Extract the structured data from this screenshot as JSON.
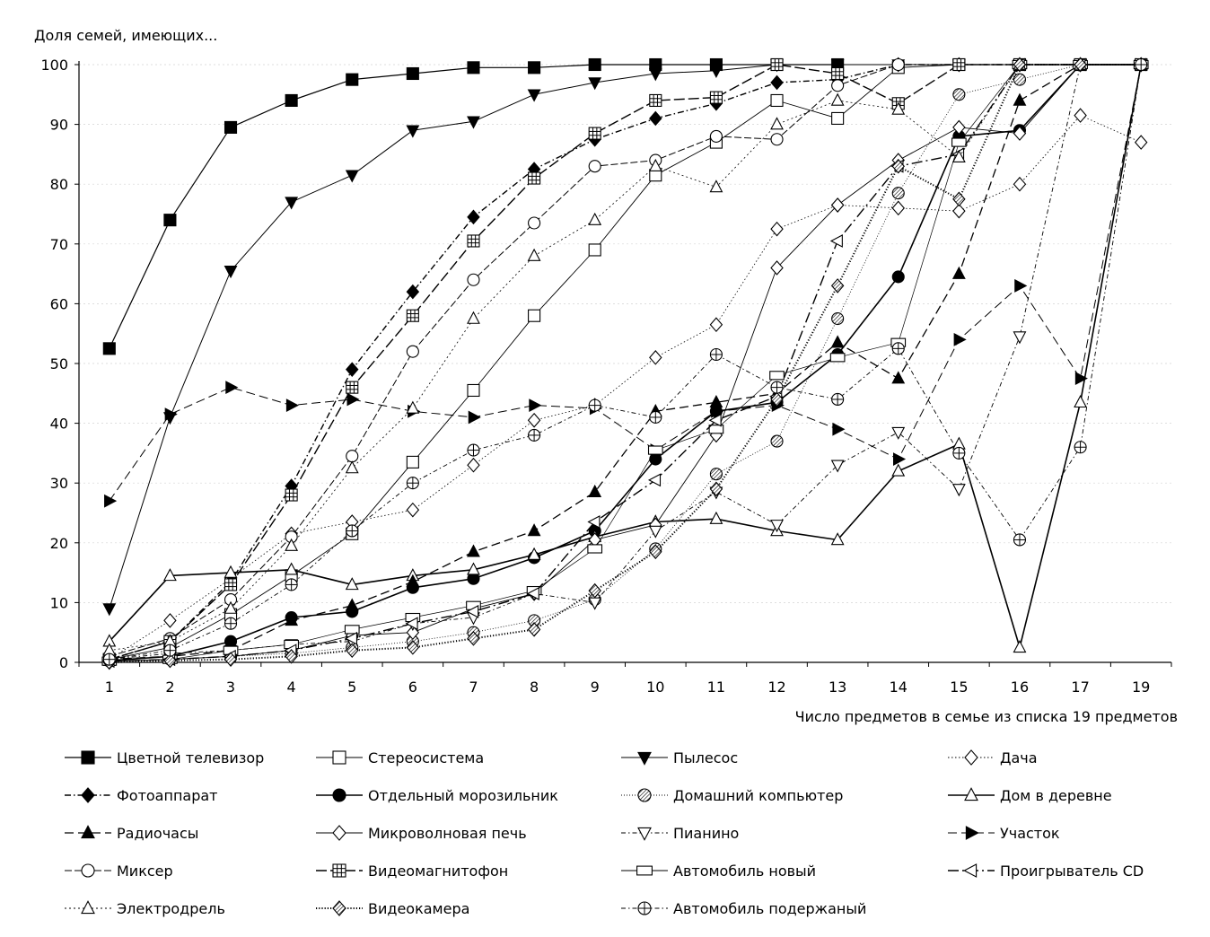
{
  "chart_data": {
    "type": "line",
    "title": "",
    "ylabel": "Доля семей, имеющих...",
    "xlabel": "Число предметов в семье из списка 19 предметов",
    "categories": [
      "1",
      "2",
      "3",
      "4",
      "5",
      "6",
      "7",
      "8",
      "9",
      "10",
      "11",
      "12",
      "13",
      "14",
      "15",
      "16",
      "17",
      "19"
    ],
    "ylim": [
      0,
      100
    ],
    "yticks": [
      0,
      10,
      20,
      30,
      40,
      50,
      60,
      70,
      80,
      90,
      100
    ],
    "grid": true,
    "legend_position": "bottom",
    "series": [
      {
        "name": "Цветной телевизор",
        "color": "#000000",
        "dash": "",
        "marker": "square",
        "fill": "black",
        "width": 1.2,
        "values": [
          52.5,
          74,
          89.5,
          94,
          97.5,
          98.5,
          99.5,
          99.5,
          100,
          100,
          100,
          100,
          100,
          null,
          null,
          null,
          null,
          null
        ]
      },
      {
        "name": "Стереосистема",
        "color": "#000000",
        "dash": "",
        "marker": "square",
        "fill": "white",
        "width": 0.9,
        "values": [
          0.5,
          2.5,
          8,
          14.5,
          21.5,
          33.5,
          45.5,
          58,
          69,
          81.5,
          87,
          94,
          91,
          99.5,
          100,
          100,
          100,
          100
        ]
      },
      {
        "name": "Пылесос",
        "color": "#000000",
        "dash": "",
        "marker": "triangle-down",
        "fill": "black",
        "width": 1.0,
        "values": [
          9,
          41,
          65.5,
          77,
          81.5,
          89,
          90.5,
          95,
          97,
          98.5,
          99,
          100,
          100,
          100,
          100,
          100,
          100,
          100
        ]
      },
      {
        "name": "Дача",
        "color": "#000000",
        "dash": "1.5 2.5",
        "marker": "diamond",
        "fill": "white",
        "width": 0.8,
        "values": [
          0.5,
          7,
          14,
          21.5,
          23.5,
          25.5,
          33,
          40.5,
          43,
          51,
          56.5,
          72.5,
          76.5,
          76,
          75.5,
          80,
          91.5,
          87
        ]
      },
      {
        "name": "Фотоаппарат",
        "color": "#000000",
        "dash": "7 3 1.5 3",
        "marker": "diamond",
        "fill": "black",
        "width": 1.4,
        "values": [
          0.5,
          3.5,
          13.5,
          29.5,
          49,
          62,
          74.5,
          82.5,
          87.5,
          91,
          93.5,
          97,
          97.5,
          100,
          100,
          100,
          100,
          100
        ]
      },
      {
        "name": "Отдельный морозильник",
        "color": "#000000",
        "dash": "",
        "marker": "circle",
        "fill": "black",
        "width": 1.6,
        "values": [
          0.3,
          1,
          3.5,
          7.5,
          8.5,
          12.5,
          14,
          17.5,
          22,
          34,
          42,
          43.5,
          51.5,
          64.5,
          88,
          89,
          100,
          100
        ]
      },
      {
        "name": "Домашний компьютер",
        "color": "#000000",
        "dash": "1 2",
        "marker": "circle-hatch",
        "fill": "white",
        "width": 0.8,
        "values": [
          0.2,
          0.5,
          1,
          1.5,
          2.5,
          3.5,
          5,
          7,
          10.5,
          19,
          31.5,
          37,
          57.5,
          78.5,
          95,
          97.5,
          100,
          100
        ]
      },
      {
        "name": "Дом в деревне",
        "color": "#000000",
        "dash": "",
        "marker": "triangle",
        "fill": "white",
        "width": 1.6,
        "values": [
          3.5,
          14.5,
          15,
          15.5,
          13,
          14.5,
          15.5,
          18,
          21,
          23.5,
          24,
          22,
          20.5,
          32,
          36.5,
          2.5,
          43.5,
          100
        ]
      },
      {
        "name": "Радиочасы",
        "color": "#000000",
        "dash": "10 5",
        "marker": "triangle",
        "fill": "black",
        "width": 1.3,
        "values": [
          0.5,
          1,
          2,
          7,
          9.5,
          13.5,
          18.5,
          22,
          28.5,
          42,
          43.5,
          45,
          53.5,
          47.5,
          65,
          94,
          100,
          100
        ]
      },
      {
        "name": "Микроволновая печь",
        "color": "#000000",
        "dash": "",
        "marker": "diamond",
        "fill": "white",
        "width": 0.9,
        "values": [
          0.2,
          0.5,
          1,
          2,
          4.5,
          5,
          9,
          11.5,
          20.5,
          23,
          38,
          66,
          76.5,
          84,
          89.5,
          88.5,
          100,
          100
        ]
      },
      {
        "name": "Пианино",
        "color": "#000000",
        "dash": "5 3 1.5 3",
        "marker": "triangle-down",
        "fill": "white",
        "width": 0.9,
        "values": [
          0.5,
          1.5,
          2,
          3,
          3.5,
          6.5,
          7.5,
          11.5,
          10,
          22,
          28.5,
          23,
          33,
          38.5,
          29,
          54.5,
          100,
          100
        ]
      },
      {
        "name": "Участок",
        "color": "#000000",
        "dash": "10 5",
        "marker": "triangle-right",
        "fill": "black",
        "width": 1.0,
        "values": [
          27,
          41.5,
          46,
          43,
          44,
          42,
          41,
          43,
          42.5,
          35.5,
          42,
          43,
          39,
          34,
          54,
          63,
          47.5,
          100
        ]
      },
      {
        "name": "Миксер",
        "color": "#000000",
        "dash": "8 3",
        "marker": "circle",
        "fill": "white",
        "width": 1.0,
        "values": [
          1,
          4,
          10.5,
          21,
          34.5,
          52,
          64,
          73.5,
          83,
          84,
          88,
          87.5,
          96.5,
          100,
          100,
          100,
          100,
          100
        ]
      },
      {
        "name": "Видеомагнитофон",
        "color": "#000000",
        "dash": "12 4",
        "marker": "square-grid",
        "fill": "white",
        "width": 1.4,
        "values": [
          0.5,
          3.5,
          13,
          28,
          46,
          58,
          70.5,
          81,
          88.5,
          94,
          94.5,
          100,
          98.5,
          93.5,
          100,
          100,
          100,
          100
        ]
      },
      {
        "name": "Автомобиль новый",
        "color": "#000000",
        "dash": "",
        "marker": "rect",
        "fill": "white",
        "width": 0.7,
        "values": [
          0.2,
          0.5,
          2,
          3,
          5.5,
          7.5,
          9.5,
          12,
          19,
          35.5,
          39,
          48,
          51,
          53.5,
          87,
          100,
          100,
          100
        ]
      },
      {
        "name": "Проигрыватель CD",
        "color": "#000000",
        "dash": "12 4 2 4",
        "marker": "triangle-left",
        "fill": "white",
        "width": 1.4,
        "values": [
          0.2,
          0.5,
          1,
          2,
          4,
          6.5,
          8.5,
          11.5,
          23.5,
          30.5,
          40.5,
          44.5,
          70.5,
          83,
          85,
          100,
          100,
          100
        ]
      },
      {
        "name": "Электродрель",
        "color": "#000000",
        "dash": "2 3",
        "marker": "triangle",
        "fill": "white",
        "width": 0.8,
        "values": [
          2,
          3.5,
          9,
          19.5,
          32.5,
          42.5,
          57.5,
          68,
          74,
          83,
          79.5,
          90,
          94,
          92.5,
          84.5,
          100,
          100,
          100
        ]
      },
      {
        "name": "Видеокамера",
        "color": "#000000",
        "dash": "1.2 2",
        "marker": "diamond-hatch",
        "fill": "white",
        "width": 2.0,
        "values": [
          0,
          0.3,
          0.5,
          1,
          2,
          2.5,
          4,
          5.5,
          12,
          18.5,
          29,
          44,
          63,
          83,
          77.5,
          100,
          100,
          100
        ]
      },
      {
        "name": "Автомобиль подержаный",
        "color": "#000000",
        "dash": "5 3 1.5 3",
        "marker": "circle-grid",
        "fill": "white",
        "width": 0.9,
        "values": [
          0.5,
          2,
          6.5,
          13,
          22,
          30,
          35.5,
          38,
          43,
          41,
          51.5,
          46,
          44,
          52.5,
          35,
          20.5,
          36,
          100
        ]
      }
    ]
  }
}
